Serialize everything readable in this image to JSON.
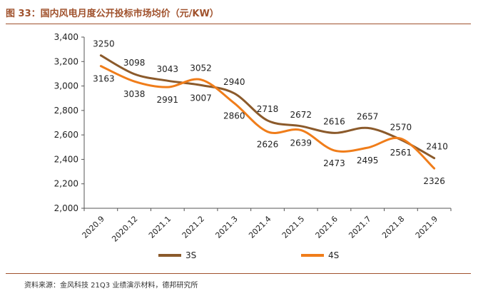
{
  "figure": {
    "title": "图 33：国内风电月度公开投标市场均价（元/KW）",
    "source": "资料来源：金风科技 21Q3 业绩演示材料，德邦研究所"
  },
  "colors": {
    "brand": "#a0522d",
    "series_3s": "#8b5a2b",
    "series_4s": "#f07d1a",
    "axis": "#555555",
    "text": "#222222"
  },
  "chart_data": {
    "type": "line",
    "categories": [
      "2020.9",
      "2020.12",
      "2021.1",
      "2021.2",
      "2021.3",
      "2021.4",
      "2021.5",
      "2021.6",
      "2021.7",
      "2021.8",
      "2021.9"
    ],
    "series": [
      {
        "name": "3S",
        "values": [
          3250,
          3098,
          3043,
          3007,
          2940,
          2718,
          2672,
          2616,
          2657,
          2561,
          2410
        ]
      },
      {
        "name": "4S",
        "values": [
          3163,
          3038,
          2991,
          3052,
          2860,
          2626,
          2639,
          2473,
          2495,
          2570,
          2326
        ]
      }
    ],
    "yticks": [
      "2,000",
      "2,200",
      "2,400",
      "2,600",
      "2,800",
      "3,000",
      "3,200",
      "3,400"
    ],
    "ylim": [
      2000,
      3400
    ],
    "grid": false,
    "legend_position": "bottom",
    "smooth": true
  }
}
